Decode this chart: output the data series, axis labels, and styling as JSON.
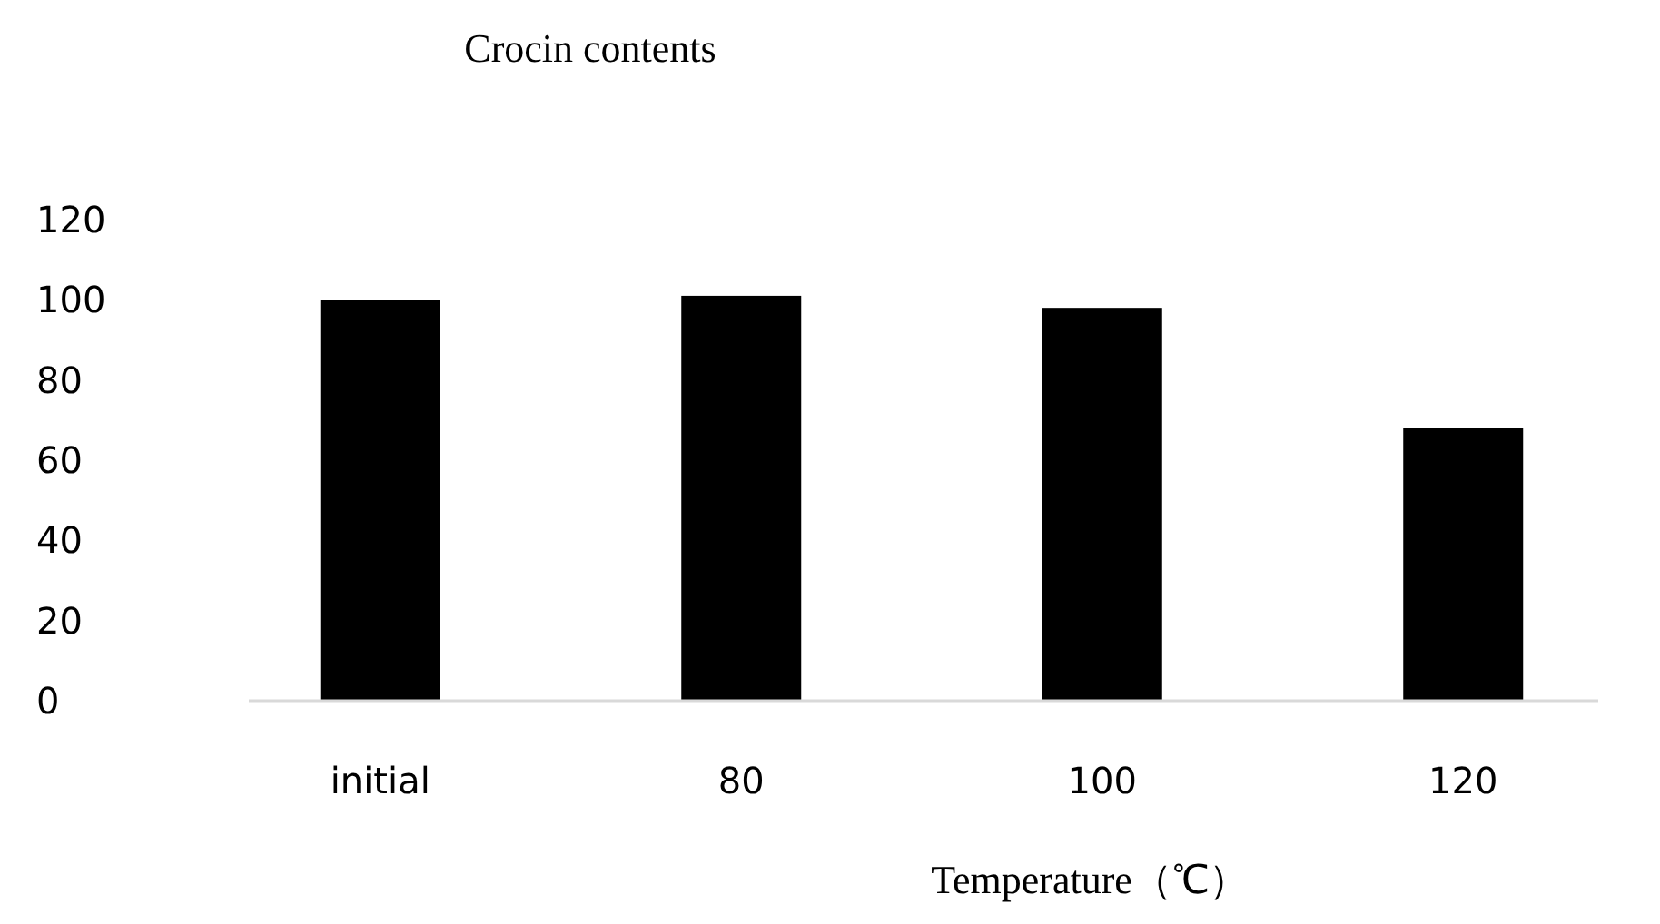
{
  "chart_data": {
    "type": "bar",
    "title": "Crocin contents",
    "xlabel": "Temperature（℃）",
    "categories": [
      "initial",
      "80",
      "100",
      "120"
    ],
    "values": [
      100,
      101,
      98,
      68
    ],
    "color": "#000000",
    "ylim": [
      0,
      120
    ],
    "yticks": [
      0,
      20,
      40,
      60,
      80,
      100,
      120
    ],
    "grid": false
  }
}
